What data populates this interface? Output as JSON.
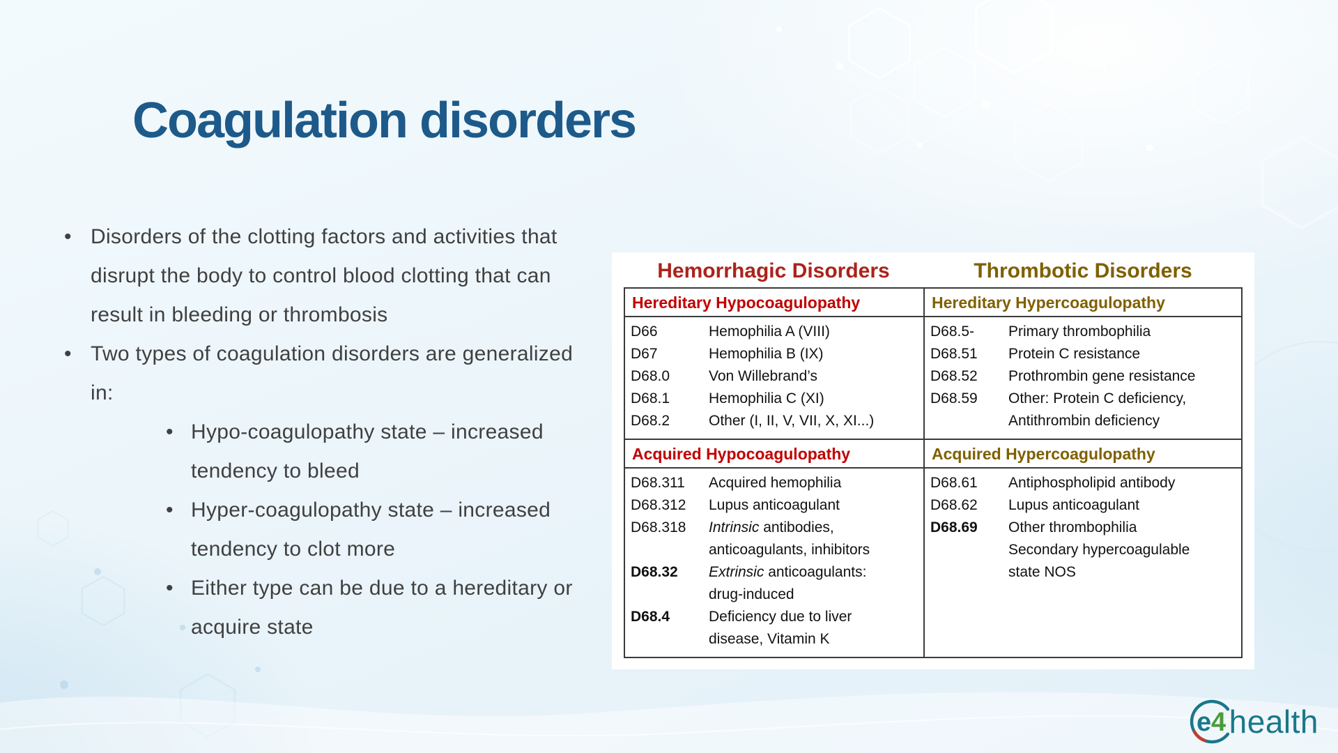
{
  "slide": {
    "title": "Coagulation disorders",
    "title_color": "#1d5a8a"
  },
  "bullets": {
    "marker": "•",
    "level1": [
      {
        "text": "Disorders of the clotting factors and activities that disrupt the body to control blood clotting that can result in bleeding or thrombosis"
      },
      {
        "text": "Two types of coagulation disorders are generalized in:"
      }
    ],
    "level2": [
      {
        "text": "Hypo-coagulopathy state – increased tendency to bleed"
      },
      {
        "text": "Hyper-coagulopathy state – increased tendency to clot more"
      },
      {
        "text": "Either type can be due to a hereditary or acquire state"
      }
    ]
  },
  "table": {
    "border_color": "#3a3a3a",
    "columns": [
      {
        "id": "hemorrhagic",
        "title": "Hemorrhagic Disorders",
        "title_color": "#ab231b",
        "sections": [
          {
            "header": "Hereditary Hypocoagulopathy",
            "header_color": "#c00000",
            "rows": [
              {
                "code": "D66",
                "bold": false,
                "lines": [
                  [
                    {
                      "text": "Hemophilia A (VIII)"
                    }
                  ]
                ]
              },
              {
                "code": "D67",
                "bold": false,
                "lines": [
                  [
                    {
                      "text": "Hemophilia B (IX)"
                    }
                  ]
                ]
              },
              {
                "code": "D68.0",
                "bold": false,
                "lines": [
                  [
                    {
                      "text": "Von Willebrand’s"
                    }
                  ]
                ]
              },
              {
                "code": "D68.1",
                "bold": false,
                "lines": [
                  [
                    {
                      "text": "Hemophilia C (XI)"
                    }
                  ]
                ]
              },
              {
                "code": "D68.2",
                "bold": false,
                "lines": [
                  [
                    {
                      "text": "Other (I, II, V, VII, X, XI...)"
                    }
                  ]
                ]
              }
            ]
          },
          {
            "header": "Acquired Hypocoagulopathy",
            "header_color": "#c00000",
            "rows": [
              {
                "code": "D68.311",
                "bold": false,
                "lines": [
                  [
                    {
                      "text": "Acquired hemophilia"
                    }
                  ]
                ]
              },
              {
                "code": "D68.312",
                "bold": false,
                "lines": [
                  [
                    {
                      "text": "Lupus anticoagulant"
                    }
                  ]
                ]
              },
              {
                "code": "D68.318",
                "bold": false,
                "lines": [
                  [
                    {
                      "text": "Intrinsic",
                      "italic": true
                    },
                    {
                      "text": " antibodies,"
                    }
                  ],
                  [
                    {
                      "text": "anticoagulants, inhibitors"
                    }
                  ]
                ]
              },
              {
                "code": "D68.32",
                "bold": true,
                "lines": [
                  [
                    {
                      "text": "Extrinsic",
                      "italic": true
                    },
                    {
                      "text": " anticoagulants:"
                    }
                  ],
                  [
                    {
                      "text": "drug-induced"
                    }
                  ]
                ]
              },
              {
                "code": "D68.4",
                "bold": true,
                "lines": [
                  [
                    {
                      "text": "Deficiency due to liver"
                    }
                  ],
                  [
                    {
                      "text": "disease, Vitamin K"
                    }
                  ]
                ]
              }
            ]
          }
        ]
      },
      {
        "id": "thrombotic",
        "title": "Thrombotic Disorders",
        "title_color": "#7f6000",
        "sections": [
          {
            "header": "Hereditary Hypercoagulopathy",
            "header_color": "#7f6000",
            "rows": [
              {
                "code": "D68.5-",
                "bold": false,
                "lines": [
                  [
                    {
                      "text": "Primary thrombophilia"
                    }
                  ]
                ]
              },
              {
                "code": "D68.51",
                "bold": false,
                "lines": [
                  [
                    {
                      "text": "Protein C resistance"
                    }
                  ]
                ]
              },
              {
                "code": "D68.52",
                "bold": false,
                "lines": [
                  [
                    {
                      "text": "Prothrombin gene resistance"
                    }
                  ]
                ]
              },
              {
                "code": "D68.59",
                "bold": false,
                "lines": [
                  [
                    {
                      "text": "Other: Protein C deficiency,"
                    }
                  ],
                  [
                    {
                      "text": "Antithrombin deficiency"
                    }
                  ]
                ]
              }
            ]
          },
          {
            "header": "Acquired Hypercoagulopathy",
            "header_color": "#7f6000",
            "rows": [
              {
                "code": "D68.61",
                "bold": false,
                "lines": [
                  [
                    {
                      "text": "Antiphospholipid antibody"
                    }
                  ]
                ]
              },
              {
                "code": "D68.62",
                "bold": false,
                "lines": [
                  [
                    {
                      "text": "Lupus anticoagulant"
                    }
                  ]
                ]
              },
              {
                "code": "D68.69",
                "bold": true,
                "lines": [
                  [
                    {
                      "text": "Other thrombophilia"
                    }
                  ],
                  [
                    {
                      "text": "Secondary hypercoagulable"
                    }
                  ],
                  [
                    {
                      "text": "state NOS"
                    }
                  ]
                ]
              }
            ]
          }
        ]
      }
    ]
  },
  "logo": {
    "e": "e",
    "four": "4",
    "health": "health",
    "teal": "#19788a",
    "green": "#4a9b3a",
    "red": "#c63d2f"
  }
}
